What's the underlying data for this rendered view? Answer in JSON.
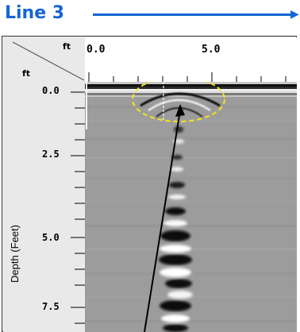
{
  "title": "Line 3",
  "units": {
    "x": "ft",
    "y": "ft"
  },
  "x_axis": {
    "tick_labels": [
      "0.0",
      "5.0"
    ]
  },
  "y_axis": {
    "label": "Depth (Feet)",
    "tick_labels": [
      "0.0",
      "2.5",
      "5.0",
      "7.5"
    ]
  },
  "colors": {
    "title": "#1466d6",
    "highlight_ellipse": "#f5e21b",
    "pointer": "#000000"
  }
}
